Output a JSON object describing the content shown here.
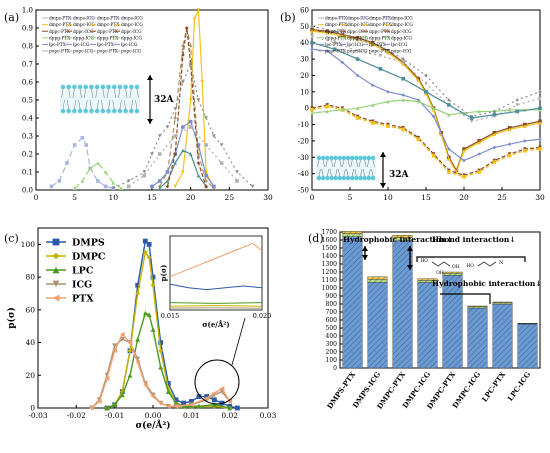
{
  "chart_data": [
    {
      "panel_label": "(a)",
      "type": "line",
      "xlim": [
        0,
        30
      ],
      "ylim": [
        0,
        1.0
      ],
      "x_ticks": [
        "0",
        "5",
        "10",
        "15",
        "20",
        "25",
        "30"
      ],
      "y_ticks": [
        "0.0",
        "0.1",
        "0.2",
        "0.3",
        "0.4",
        "0.5",
        "0.6",
        "0.7",
        "0.8",
        "0.9",
        "1.0"
      ],
      "annotation": "32A",
      "legend_columns": [
        [
          "dmps-PTX",
          "dmpc-PTX",
          "dppc-PTX",
          "dppg-PTX",
          "lpc-PTX",
          "popc-PTX"
        ],
        [
          "dmps-ICG",
          "dmpc-ICG",
          "dppc-ICG",
          "dppg-ICG",
          "lpc-ICG",
          "popc-ICG"
        ],
        [
          "dmps-PTX",
          "dmpc-PTX",
          "dppc-PTX",
          "dppg-PTX",
          "lpc-PTX",
          "popc-PTX"
        ],
        [
          "dmps-ICG",
          "dmpc-ICG",
          "dppc-ICG",
          "dppg-ICG",
          "lpc-ICG",
          "popc-ICG"
        ]
      ],
      "series": [
        {
          "color": "#a9b4e0",
          "dash": "6 3",
          "x": [
            2,
            3,
            4,
            5,
            6,
            6.5,
            7,
            8,
            9,
            10
          ],
          "y": [
            0.02,
            0.05,
            0.15,
            0.25,
            0.29,
            0.25,
            0.12,
            0.05,
            0.02,
            0.01
          ]
        },
        {
          "color": "#9ad27a",
          "dash": "6 3",
          "x": [
            5,
            6,
            7,
            8,
            9,
            10,
            11
          ],
          "y": [
            0.01,
            0.05,
            0.12,
            0.15,
            0.1,
            0.04,
            0.01
          ]
        },
        {
          "color": "#b6935f",
          "dash": "5 3",
          "x": [
            16,
            17,
            18,
            19,
            19.5,
            20,
            21,
            22,
            23
          ],
          "y": [
            0.02,
            0.1,
            0.4,
            0.8,
            0.9,
            0.8,
            0.2,
            0.05,
            0.01
          ]
        },
        {
          "color": "#f2c21b",
          "dash": "",
          "x": [
            18,
            19,
            20,
            20.5,
            21,
            21.5,
            22,
            23
          ],
          "y": [
            0.02,
            0.1,
            0.5,
            0.95,
            1.0,
            0.6,
            0.1,
            0.01
          ]
        },
        {
          "color": "#7b8ccf",
          "dash": "",
          "x": [
            15,
            16,
            17,
            18,
            19,
            20,
            21,
            22,
            23
          ],
          "y": [
            0.02,
            0.05,
            0.1,
            0.2,
            0.35,
            0.38,
            0.25,
            0.08,
            0.02
          ]
        },
        {
          "color": "#4b8e9b",
          "dash": "",
          "x": [
            16,
            17,
            18,
            19,
            20,
            21,
            22
          ],
          "y": [
            0.01,
            0.05,
            0.15,
            0.22,
            0.2,
            0.08,
            0.02
          ]
        },
        {
          "color": "#8a4a1e",
          "dash": "4 2",
          "x": [
            17,
            18,
            19,
            19.5,
            20,
            21,
            22
          ],
          "y": [
            0.02,
            0.2,
            0.75,
            0.9,
            0.7,
            0.15,
            0.02
          ]
        },
        {
          "color": "#8e8e8e",
          "dash": "2 3",
          "x": [
            10,
            12,
            14,
            15,
            16,
            17,
            18,
            19,
            20,
            21,
            22,
            23,
            24,
            26,
            28
          ],
          "y": [
            0.01,
            0.05,
            0.1,
            0.2,
            0.3,
            0.35,
            0.45,
            0.6,
            0.7,
            0.5,
            0.4,
            0.3,
            0.25,
            0.1,
            0.02
          ]
        },
        {
          "color": "#b0b0b0",
          "dash": "2 3",
          "x": [
            12,
            14,
            16,
            18,
            20,
            22,
            24,
            26
          ],
          "y": [
            0.02,
            0.08,
            0.2,
            0.3,
            0.35,
            0.25,
            0.15,
            0.05
          ]
        }
      ]
    },
    {
      "panel_label": "(b)",
      "type": "line",
      "xlim": [
        0,
        30
      ],
      "ylim": [
        -50,
        60
      ],
      "x_ticks": [
        "0",
        "5",
        "10",
        "15",
        "20",
        "25",
        "30"
      ],
      "y_ticks": [
        "-50",
        "-40",
        "-30",
        "-20",
        "-10",
        "0",
        "10",
        "20",
        "30",
        "40",
        "50",
        "60"
      ],
      "annotation": "32A",
      "legend_columns": [
        [
          "dmps-PTX",
          "dmpc-PTX",
          "dppc-PTX",
          "dppg-PTX",
          "lpc-PTX",
          "popc-PTX"
        ],
        [
          "dmps-ICG",
          "dmpc-ICG",
          "dppc-ICG",
          "dppg-ICG",
          "lpc-ICG",
          "popc-ICG"
        ],
        [
          "dmps-PTX",
          "dmpc-PTX",
          "dppc-PTX",
          "dppg-PTX",
          "lpc-PTX",
          "popc-PTX"
        ],
        [
          "dmps-ICG",
          "dmpc-ICG",
          "dppc-ICG",
          "dppg-ICG",
          "lpc-ICG",
          "popc-ICG"
        ]
      ],
      "series": [
        {
          "color": "#8a4a1e",
          "dash": "",
          "x": [
            0,
            2,
            4,
            6,
            8,
            10,
            12,
            14,
            15,
            16,
            17,
            18,
            19,
            20,
            22,
            24,
            26,
            28,
            30
          ],
          "y": [
            48,
            47,
            45,
            43,
            40,
            35,
            28,
            18,
            10,
            0,
            -15,
            -30,
            -38,
            -25,
            -20,
            -15,
            -12,
            -10,
            -8
          ]
        },
        {
          "color": "#f2c21b",
          "dash": "",
          "x": [
            0,
            2,
            4,
            6,
            8,
            10,
            12,
            14,
            15,
            16,
            17,
            18,
            19,
            20,
            22,
            24,
            26,
            28,
            30
          ],
          "y": [
            47,
            46,
            44,
            42,
            39,
            34,
            27,
            17,
            9,
            -1,
            -16,
            -31,
            -39,
            -26,
            -21,
            -16,
            -13,
            -11,
            -9
          ]
        },
        {
          "color": "#7b8ccf",
          "dash": "",
          "x": [
            0,
            2,
            4,
            6,
            8,
            10,
            12,
            14,
            16,
            18,
            20,
            22,
            24,
            26,
            28,
            30
          ],
          "y": [
            36,
            35,
            28,
            20,
            14,
            10,
            8,
            5,
            -5,
            -25,
            -32,
            -28,
            -24,
            -22,
            -20,
            -19
          ]
        },
        {
          "color": "#8a4a1e",
          "dash": "4 2",
          "x": [
            0,
            2,
            4,
            6,
            8,
            10,
            12,
            14,
            16,
            18,
            20,
            22,
            24,
            26,
            28,
            30
          ],
          "y": [
            0,
            2,
            0,
            -5,
            -8,
            -10,
            -12,
            -18,
            -28,
            -38,
            -41,
            -38,
            -32,
            -28,
            -25,
            -24
          ]
        },
        {
          "color": "#f2c21b",
          "dash": "4 2",
          "x": [
            0,
            2,
            4,
            6,
            8,
            10,
            12,
            14,
            16,
            18,
            20,
            22,
            24,
            26,
            28,
            30
          ],
          "y": [
            -1,
            1,
            -1,
            -6,
            -9,
            -11,
            -13,
            -19,
            -29,
            -39,
            -42,
            -39,
            -33,
            -29,
            -26,
            -25
          ]
        },
        {
          "color": "#9ad27a",
          "dash": "",
          "x": [
            0,
            2,
            4,
            6,
            8,
            10,
            12,
            14,
            16,
            18,
            20,
            22,
            24,
            26,
            28,
            30
          ],
          "y": [
            -3,
            -2,
            -1,
            0,
            2,
            4,
            5,
            4,
            0,
            -4,
            -3,
            -2,
            -2,
            -1,
            -1,
            -1
          ]
        },
        {
          "color": "#8e8e8e",
          "dash": "2 3",
          "x": [
            0,
            3,
            6,
            9,
            12,
            15,
            18,
            21,
            24,
            27,
            30
          ],
          "y": [
            50,
            47,
            42,
            38,
            30,
            20,
            5,
            -5,
            -2,
            5,
            10
          ]
        },
        {
          "color": "#b0b0b0",
          "dash": "2 3",
          "x": [
            0,
            3,
            6,
            9,
            12,
            15,
            18,
            21,
            24,
            27,
            30
          ],
          "y": [
            44,
            40,
            35,
            32,
            28,
            15,
            2,
            -8,
            -5,
            2,
            6
          ]
        },
        {
          "color": "#4b8e9b",
          "dash": "",
          "x": [
            0,
            3,
            6,
            9,
            12,
            15,
            18,
            21,
            24,
            27,
            30
          ],
          "y": [
            40,
            36,
            30,
            24,
            18,
            10,
            2,
            -6,
            -4,
            -2,
            0
          ]
        }
      ]
    },
    {
      "panel_label": "(c)",
      "type": "line",
      "xlabel": "σ(e/Å²)",
      "ylabel": "p(σ)",
      "xlim": [
        -0.03,
        0.03
      ],
      "ylim": [
        0,
        110
      ],
      "x_ticks": [
        "-0.03",
        "-0.02",
        "-0.01",
        "0.00",
        "0.01",
        "0.02",
        "0.03"
      ],
      "y_ticks": [
        "0",
        "20",
        "40",
        "60",
        "80",
        "100"
      ],
      "series": [
        {
          "name": "DMPS",
          "color": "#2b5aa8",
          "marker": "square",
          "x": [
            -0.012,
            -0.01,
            -0.008,
            -0.006,
            -0.004,
            -0.002,
            -0.001,
            0,
            0.002,
            0.004,
            0.006,
            0.008,
            0.01,
            0.012,
            0.014,
            0.016,
            0.018,
            0.02,
            0.022
          ],
          "y": [
            0,
            2,
            10,
            35,
            75,
            102,
            100,
            80,
            40,
            15,
            5,
            3,
            4,
            7,
            7,
            5,
            3,
            1,
            0
          ]
        },
        {
          "name": "DMPC",
          "color": "#c8b400",
          "marker": "diamond",
          "x": [
            -0.012,
            -0.01,
            -0.008,
            -0.006,
            -0.004,
            -0.002,
            -0.001,
            0,
            0.002,
            0.004,
            0.006,
            0.008,
            0.01,
            0.012,
            0.016,
            0.02
          ],
          "y": [
            0,
            2,
            10,
            35,
            70,
            95,
            92,
            75,
            35,
            12,
            3,
            1,
            1,
            1,
            1,
            0
          ]
        },
        {
          "name": "LPC",
          "color": "#4a9a1c",
          "marker": "triangle",
          "x": [
            -0.012,
            -0.01,
            -0.008,
            -0.006,
            -0.004,
            -0.002,
            -0.001,
            0,
            0.002,
            0.004,
            0.006,
            0.008,
            0.01,
            0.012,
            0.016,
            0.02
          ],
          "y": [
            0,
            2,
            8,
            20,
            42,
            58,
            57,
            48,
            25,
            10,
            3,
            1,
            1,
            1,
            2,
            0
          ]
        },
        {
          "name": "ICG",
          "color": "#a89574",
          "marker": "triangle-down",
          "x": [
            -0.016,
            -0.014,
            -0.012,
            -0.01,
            -0.008,
            -0.006,
            -0.004,
            -0.002,
            0,
            0.002,
            0.004,
            0.006,
            0.01,
            0.014,
            0.016,
            0.018,
            0.02
          ],
          "y": [
            0,
            5,
            20,
            38,
            42,
            40,
            30,
            15,
            8,
            3,
            1,
            1,
            2,
            5,
            8,
            10,
            4
          ]
        },
        {
          "name": "PTX",
          "color": "#f0a070",
          "marker": "triangle-left",
          "x": [
            -0.016,
            -0.014,
            -0.012,
            -0.01,
            -0.008,
            -0.006,
            -0.004,
            -0.002,
            0,
            0.002,
            0.004,
            0.006,
            0.01,
            0.014,
            0.016,
            0.018,
            0.02
          ],
          "y": [
            0,
            4,
            18,
            35,
            45,
            40,
            28,
            14,
            7,
            3,
            1,
            1,
            2,
            6,
            9,
            12,
            4
          ]
        }
      ],
      "inset": {
        "xlabel": "σ(e/Å²)",
        "ylabel": "p(σ)",
        "xlim": [
          0.015,
          0.02
        ],
        "ylim": [
          0,
          20
        ],
        "x_ticks": [
          "0.015",
          "0.020"
        ],
        "series": [
          {
            "color": "#2b5aa8",
            "x": [
              0.015,
              0.016,
              0.017,
              0.018,
              0.019,
              0.02
            ],
            "y": [
              7,
              6,
              5.5,
              6,
              6.5,
              6
            ]
          },
          {
            "color": "#f0a070",
            "x": [
              0.015,
              0.016,
              0.017,
              0.018,
              0.019,
              0.0195,
              0.02
            ],
            "y": [
              9,
              11,
              13,
              15,
              17,
              18,
              16
            ]
          },
          {
            "color": "#c8b400",
            "x": [
              0.015,
              0.0175,
              0.02
            ],
            "y": [
              1,
              1.2,
              1
            ]
          },
          {
            "color": "#4a9a1c",
            "x": [
              0.015,
              0.0175,
              0.02
            ],
            "y": [
              2,
              1.8,
              2
            ]
          },
          {
            "color": "#a89574",
            "x": [
              0.015,
              0.0175,
              0.02
            ],
            "y": [
              0.5,
              0.6,
              0.5
            ]
          }
        ]
      }
    },
    {
      "panel_label": "(d)",
      "type": "bar",
      "stacked": true,
      "ylim": [
        0,
        1700
      ],
      "y_ticks": [
        "0",
        "100",
        "200",
        "300",
        "400",
        "500",
        "600",
        "700",
        "800",
        "900",
        "1000",
        "1100",
        "1200",
        "1300",
        "1400",
        "1500",
        "1600",
        "1700"
      ],
      "categories": [
        "DMPS-PTX",
        "DMPS-ICG",
        "DMPC-PTX",
        "DMPC-ICG",
        "DMPC-PTX",
        "DMPC-ICG",
        "LPC-PTX",
        "LPC-ICG"
      ],
      "series": [
        {
          "color": "#6b9bd1",
          "values": [
            1640,
            1070,
            1590,
            1070,
            1160,
            750,
            800,
            550
          ]
        },
        {
          "color": "#b7dd7e",
          "values": [
            40,
            40,
            40,
            25,
            25,
            15,
            15,
            5
          ]
        },
        {
          "color": "#f5c542",
          "values": [
            30,
            30,
            30,
            20,
            15,
            10,
            10,
            5
          ]
        }
      ],
      "annotations": [
        "Hydrophobic interaction↓",
        "Hbond interaction↓",
        "Hydrophobic interaction↓"
      ]
    }
  ]
}
